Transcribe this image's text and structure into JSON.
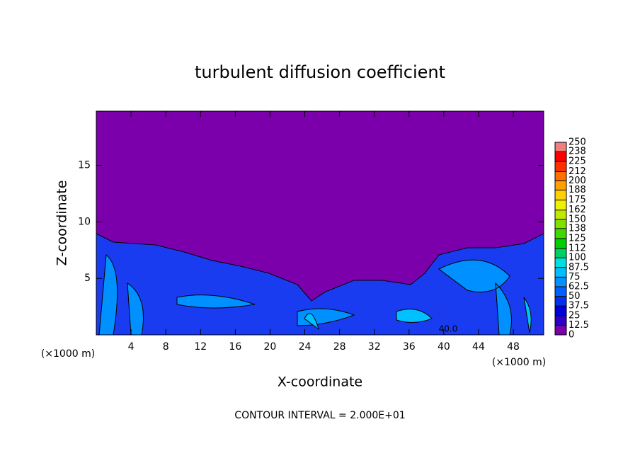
{
  "chart_data": {
    "type": "contour",
    "title": "turbulent diffusion coefficient",
    "xlabel": "X-coordinate",
    "ylabel": "Z-coordinate",
    "x_unit": "(×1000 m)",
    "y_unit": "(×1000 m)",
    "footer": "CONTOUR INTERVAL = 2.000E+01",
    "annotations": [
      "40.0"
    ],
    "xlim": [
      0,
      51.5
    ],
    "xticks": [
      4,
      8,
      12,
      16,
      20,
      24,
      28,
      32,
      36,
      40,
      44,
      48
    ],
    "ylim": [
      0,
      19.8
    ],
    "yticks": [
      5,
      10,
      15
    ],
    "colorbar": {
      "ticks": [
        0,
        12.5,
        25,
        37.5,
        50,
        62.5,
        75,
        87.5,
        100,
        112,
        125,
        138,
        150,
        162,
        175,
        188,
        200,
        212,
        225,
        238,
        250
      ],
      "colors": [
        "#7a00aa",
        "#2a00c8",
        "#0000dc",
        "#0030f0",
        "#0060ff",
        "#0090ff",
        "#00c0ff",
        "#00e0e0",
        "#00d060",
        "#00d000",
        "#40d800",
        "#80e000",
        "#c0e800",
        "#f0f000",
        "#ffd000",
        "#ffa000",
        "#ff7000",
        "#ff3000",
        "#ff0000",
        "#f08080"
      ]
    }
  }
}
